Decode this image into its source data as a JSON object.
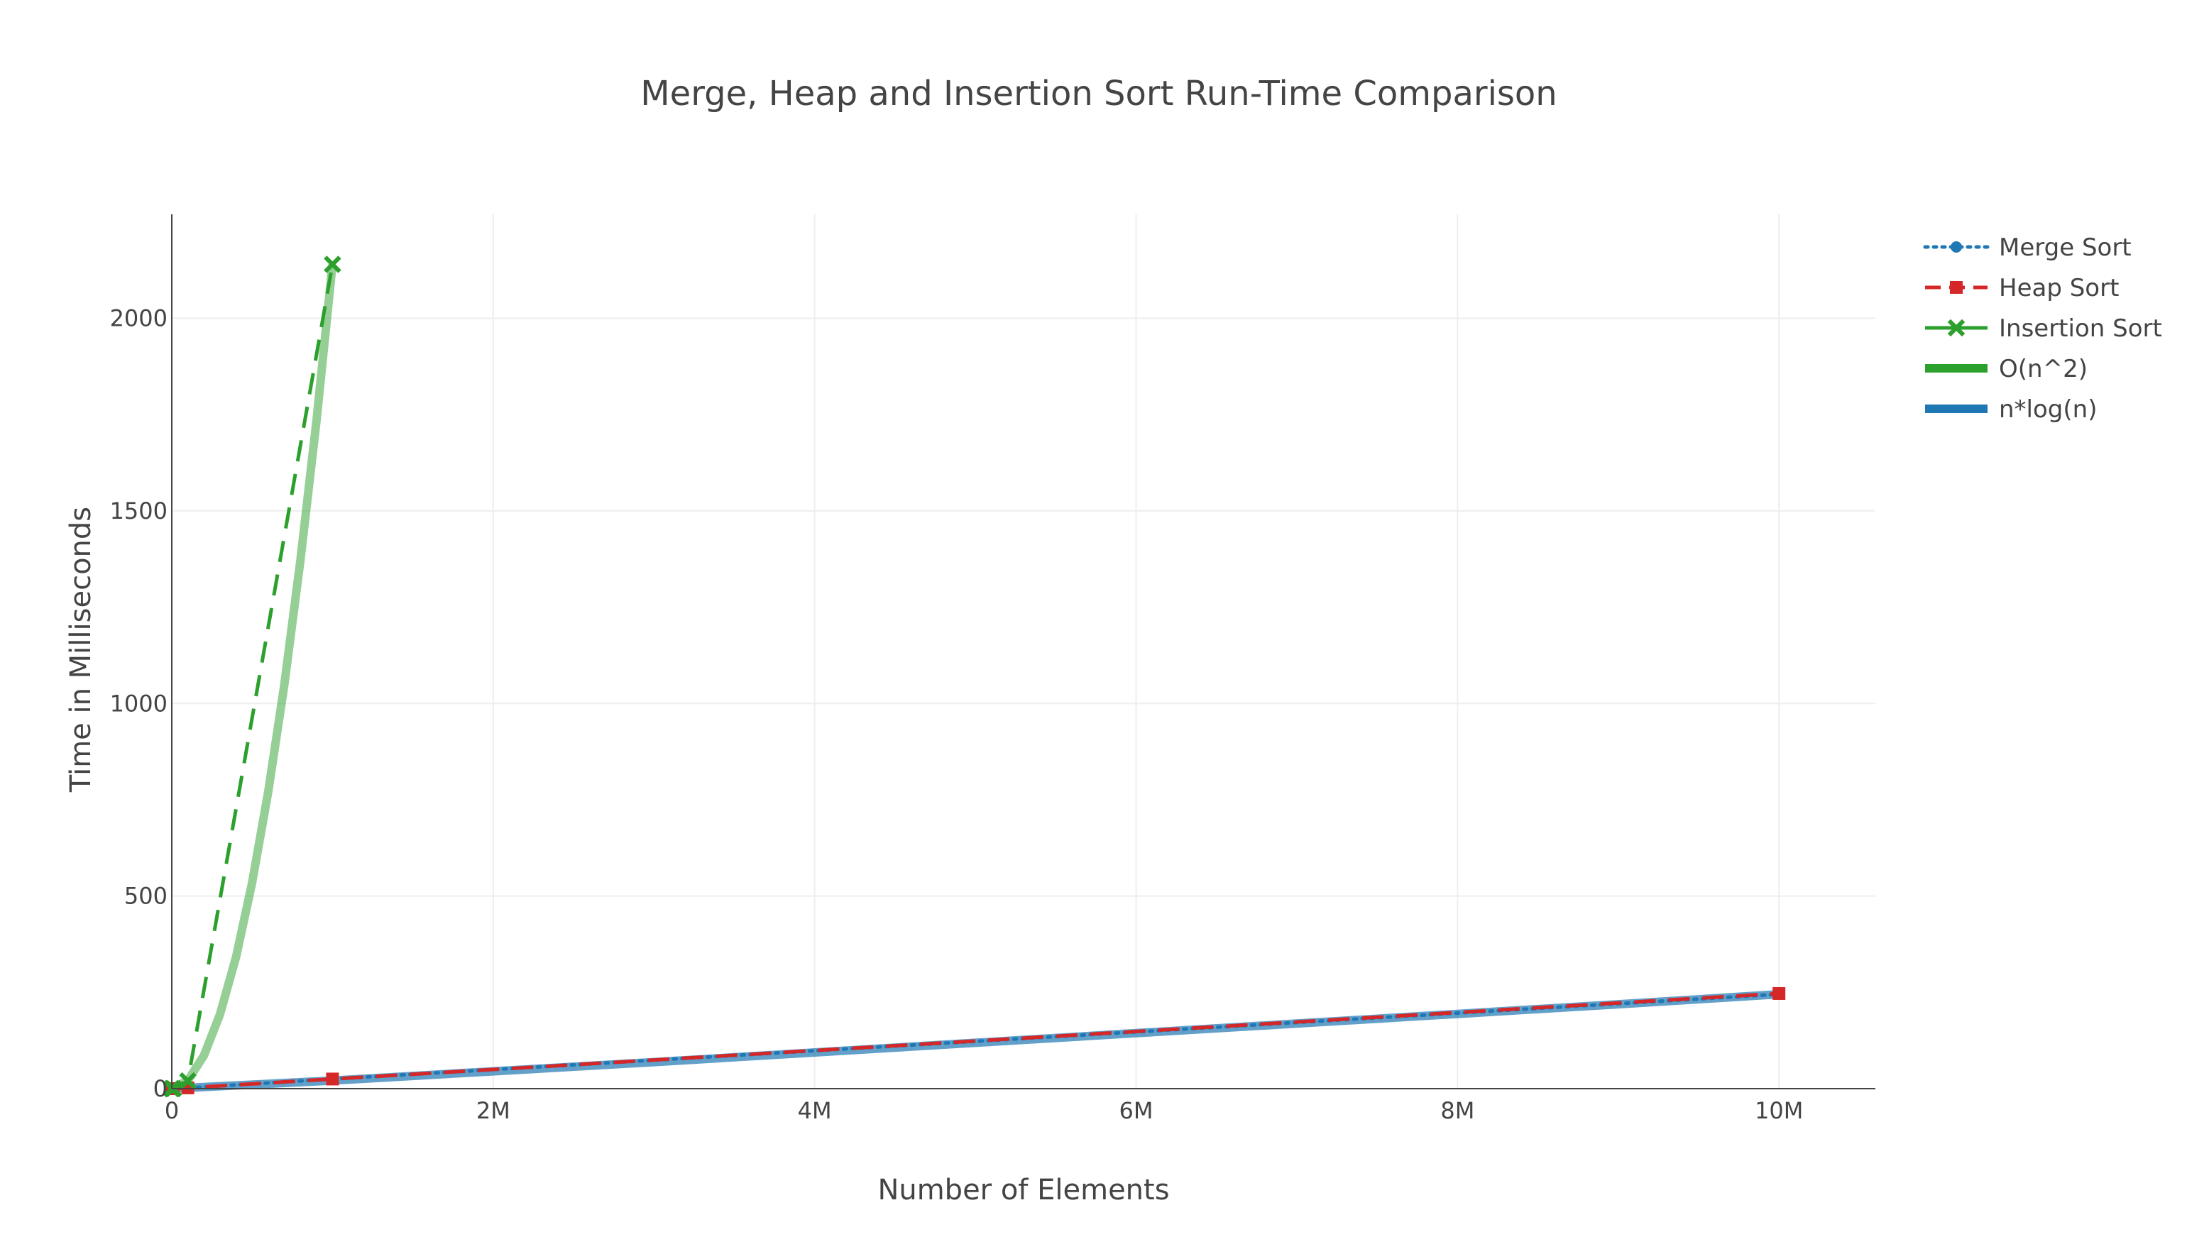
{
  "chart_data": {
    "type": "line",
    "title": "Merge, Heap and Insertion Sort Run-Time Comparison",
    "xlabel": "Number of Elements",
    "ylabel": "Time in Milliseconds",
    "xlim": [
      0,
      10600000
    ],
    "ylim": [
      0,
      2270
    ],
    "x_ticks": [
      {
        "value": 0,
        "label": "0"
      },
      {
        "value": 2000000,
        "label": "2M"
      },
      {
        "value": 4000000,
        "label": "4M"
      },
      {
        "value": 6000000,
        "label": "6M"
      },
      {
        "value": 8000000,
        "label": "8M"
      },
      {
        "value": 10000000,
        "label": "10M"
      }
    ],
    "y_ticks": [
      {
        "value": 0,
        "label": "0"
      },
      {
        "value": 500,
        "label": "500"
      },
      {
        "value": 1000,
        "label": "1000"
      },
      {
        "value": 1500,
        "label": "1500"
      },
      {
        "value": 2000,
        "label": "2000"
      }
    ],
    "grid": true,
    "legend_position": "top-right",
    "series": [
      {
        "name": "Merge Sort",
        "color": "#1f77b4",
        "style": "dotted",
        "marker": "circle",
        "x": [
          10,
          100,
          1000,
          10000,
          100000,
          1000000,
          10000000
        ],
        "y": [
          0,
          0,
          0,
          0,
          2,
          25,
          245
        ]
      },
      {
        "name": "Heap Sort",
        "color": "#d62728",
        "style": "dashed",
        "marker": "square",
        "x": [
          10,
          100,
          1000,
          10000,
          100000,
          1000000,
          10000000
        ],
        "y": [
          0,
          0,
          0,
          0,
          2,
          25,
          247
        ]
      },
      {
        "name": "Insertion Sort",
        "color": "#2ca02c",
        "style": "dashed",
        "marker": "x",
        "x": [
          10,
          100,
          1000,
          10000,
          100000,
          1000000
        ],
        "y": [
          0,
          0,
          0,
          0,
          20,
          2140
        ]
      },
      {
        "name": "O(n^2)",
        "color": "#2ca02c",
        "style": "thick",
        "opacity": 0.5,
        "x": [
          0,
          100000,
          200000,
          300000,
          400000,
          500000,
          600000,
          700000,
          800000,
          900000,
          1000000
        ],
        "y": [
          0,
          21,
          86,
          193,
          342,
          535,
          770,
          1048,
          1370,
          1733,
          2140
        ]
      },
      {
        "name": "n*log(n)",
        "color": "#1f77b4",
        "style": "thick",
        "opacity": 0.7,
        "x": [
          0,
          1000000,
          2000000,
          3000000,
          4000000,
          5000000,
          6000000,
          7000000,
          8000000,
          9000000,
          10000000
        ],
        "y": [
          0,
          21,
          45,
          69,
          94,
          119,
          144,
          169,
          194,
          219,
          245
        ]
      }
    ]
  }
}
